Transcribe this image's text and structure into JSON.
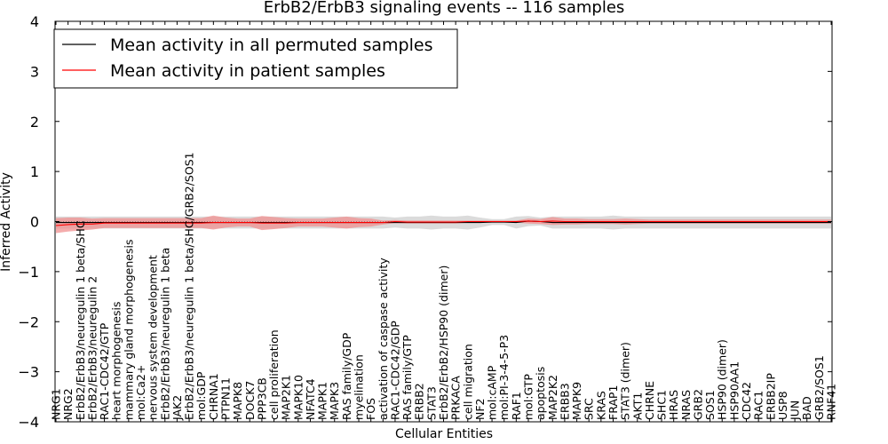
{
  "chart_data": {
    "type": "line",
    "title": "ErbB2/ErbB3 signaling events -- 116 samples",
    "xlabel": "Cellular Entities",
    "ylabel": "Inferred Activity",
    "ylim": [
      -4,
      4
    ],
    "yticks": [
      -4,
      -3,
      -2,
      -1,
      0,
      1,
      2,
      3,
      4
    ],
    "ytick_labels": [
      "−4",
      "−3",
      "−2",
      "−1",
      "0",
      "1",
      "2",
      "3",
      "4"
    ],
    "legend_position": "top-left",
    "categories": [
      "NRG1",
      "NRG2",
      "ErbB2/ErbB3/neuregulin 1 beta/SHC",
      "ErbB2/ErbB3/neuregulin 2",
      "RAC1-CDC42/GTP",
      "heart morphogenesis",
      "mammary gland morphogenesis",
      "mol:Ca2+",
      "nervous system development",
      "ErbB2/ErbB3/neuregulin 1 beta",
      "JAK2",
      "ErbB2/ErbB3/neuregulin 1 beta/SHC/GRB2/SOS1",
      "mol:GDP",
      "CHRNA1",
      "PTPN11",
      "MAPK8",
      "DOCK7",
      "PPP3CB",
      "cell proliferation",
      "MAP2K1",
      "MAPK10",
      "NFATC4",
      "MAPK1",
      "MAPK3",
      "RAS family/GDP",
      "myelination",
      "FOS",
      "activation of caspase activity",
      "RAC1-CDC42/GDP",
      "RAS family/GTP",
      "ERBB2",
      "STAT3",
      "ErbB2/ErbB2/HSP90 (dimer)",
      "PRKACA",
      "cell migration",
      "NF2",
      "mol:cAMP",
      "mol:PI-3-4-5-P3",
      "RAF1",
      "mol:GTP",
      "apoptosis",
      "MAP2K2",
      "ERBB3",
      "MAPK9",
      "SRC",
      "KRAS",
      "FRAP1",
      "STAT3 (dimer)",
      "AKT1",
      "CHRNE",
      "SHC1",
      "HRAS",
      "NRAS",
      "GRB2",
      "SOS1",
      "HSP90 (dimer)",
      "HSP90AA1",
      "CDC42",
      "RAC1",
      "ERBB2IP",
      "USP8",
      "JUN",
      "BAD",
      "GRB2/SOS1",
      "RNF41"
    ],
    "series": [
      {
        "name": "Mean activity in all permuted samples",
        "color": "#000000",
        "values": [
          -0.02,
          -0.02,
          -0.02,
          -0.02,
          -0.02,
          -0.02,
          -0.02,
          -0.02,
          -0.02,
          -0.02,
          -0.02,
          -0.02,
          -0.02,
          -0.02,
          -0.02,
          -0.02,
          -0.02,
          -0.02,
          -0.02,
          -0.02,
          -0.02,
          -0.02,
          -0.02,
          -0.02,
          -0.02,
          -0.02,
          -0.02,
          -0.02,
          -0.02,
          -0.02,
          -0.02,
          -0.02,
          -0.02,
          -0.02,
          -0.02,
          -0.02,
          -0.01,
          -0.01,
          -0.02,
          0.01,
          0.0,
          -0.02,
          -0.02,
          -0.02,
          -0.02,
          -0.02,
          -0.02,
          -0.02,
          -0.02,
          -0.02,
          -0.02,
          -0.02,
          -0.02,
          -0.02,
          -0.02,
          -0.02,
          -0.02,
          -0.02,
          -0.02,
          -0.02,
          -0.02,
          -0.02,
          -0.02,
          -0.02,
          -0.02
        ],
        "band": [
          0.12,
          0.12,
          0.12,
          0.12,
          0.12,
          0.12,
          0.12,
          0.12,
          0.12,
          0.12,
          0.12,
          0.12,
          0.12,
          0.12,
          0.12,
          0.12,
          0.12,
          0.12,
          0.12,
          0.12,
          0.12,
          0.12,
          0.12,
          0.12,
          0.12,
          0.12,
          0.12,
          0.12,
          0.1,
          0.12,
          0.12,
          0.14,
          0.12,
          0.12,
          0.14,
          0.1,
          0.06,
          0.06,
          0.12,
          0.1,
          0.08,
          0.12,
          0.12,
          0.12,
          0.12,
          0.12,
          0.14,
          0.12,
          0.12,
          0.12,
          0.12,
          0.12,
          0.12,
          0.12,
          0.12,
          0.12,
          0.12,
          0.12,
          0.12,
          0.12,
          0.12,
          0.12,
          0.12,
          0.12,
          0.12
        ],
        "band_color": "#cccccc"
      },
      {
        "name": "Mean activity in patient samples",
        "color": "#ff0000",
        "values": [
          -0.08,
          -0.06,
          -0.05,
          -0.05,
          -0.03,
          -0.03,
          -0.03,
          -0.03,
          -0.03,
          -0.03,
          -0.03,
          -0.03,
          -0.03,
          -0.02,
          -0.02,
          -0.02,
          -0.02,
          -0.03,
          -0.03,
          -0.03,
          -0.02,
          -0.02,
          -0.02,
          -0.02,
          -0.02,
          -0.02,
          -0.02,
          -0.02,
          0.0,
          -0.01,
          -0.01,
          -0.01,
          -0.01,
          -0.01,
          0.0,
          0.0,
          0.0,
          0.0,
          0.0,
          0.01,
          0.0,
          0.01,
          0.0,
          0.0,
          0.0,
          0.0,
          0.0,
          0.0,
          0.0,
          0.0,
          0.0,
          0.0,
          0.0,
          0.0,
          0.0,
          0.0,
          0.0,
          0.0,
          0.0,
          0.0,
          0.0,
          0.0,
          0.0,
          0.0,
          0.0
        ],
        "band": [
          0.15,
          0.14,
          0.13,
          0.11,
          0.1,
          0.1,
          0.1,
          0.1,
          0.1,
          0.1,
          0.1,
          0.1,
          0.1,
          0.14,
          0.1,
          0.08,
          0.08,
          0.14,
          0.12,
          0.1,
          0.08,
          0.08,
          0.08,
          0.1,
          0.12,
          0.09,
          0.08,
          0.04,
          0.03,
          0.03,
          0.03,
          0.03,
          0.03,
          0.03,
          0.02,
          0.02,
          0.02,
          0.02,
          0.02,
          0.05,
          0.05,
          0.08,
          0.06,
          0.06,
          0.05,
          0.05,
          0.05,
          0.06,
          0.05,
          0.04,
          0.04,
          0.04,
          0.04,
          0.04,
          0.04,
          0.04,
          0.04,
          0.04,
          0.04,
          0.04,
          0.04,
          0.04,
          0.04,
          0.04,
          0.04
        ],
        "band_color": "#f09090"
      }
    ]
  }
}
